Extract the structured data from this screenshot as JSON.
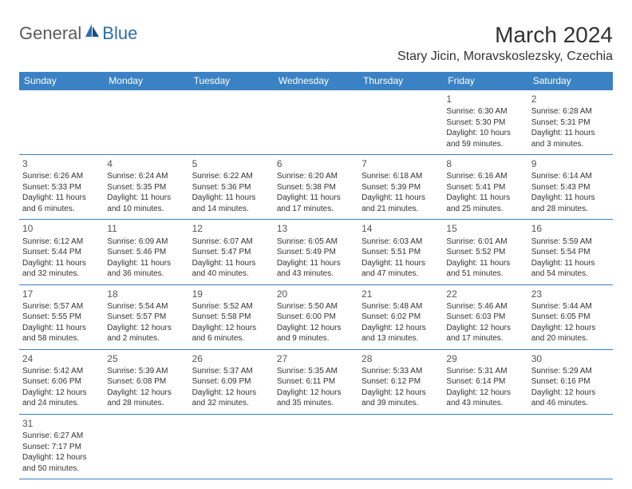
{
  "logo": {
    "general": "General",
    "blue": "Blue"
  },
  "title": "March 2024",
  "location": "Stary Jicin, Moravskoslezsky, Czechia",
  "colors": {
    "header_bg": "#3b82c4",
    "header_fg": "#ffffff",
    "border": "#3b82c4",
    "text": "#333333",
    "logo_gray": "#5a5a5a",
    "logo_blue": "#2b6cb0"
  },
  "weekdays": [
    "Sunday",
    "Monday",
    "Tuesday",
    "Wednesday",
    "Thursday",
    "Friday",
    "Saturday"
  ],
  "weeks": [
    [
      null,
      null,
      null,
      null,
      null,
      {
        "n": "1",
        "sr": "Sunrise: 6:30 AM",
        "ss": "Sunset: 5:30 PM",
        "dl": "Daylight: 10 hours and 59 minutes."
      },
      {
        "n": "2",
        "sr": "Sunrise: 6:28 AM",
        "ss": "Sunset: 5:31 PM",
        "dl": "Daylight: 11 hours and 3 minutes."
      }
    ],
    [
      {
        "n": "3",
        "sr": "Sunrise: 6:26 AM",
        "ss": "Sunset: 5:33 PM",
        "dl": "Daylight: 11 hours and 6 minutes."
      },
      {
        "n": "4",
        "sr": "Sunrise: 6:24 AM",
        "ss": "Sunset: 5:35 PM",
        "dl": "Daylight: 11 hours and 10 minutes."
      },
      {
        "n": "5",
        "sr": "Sunrise: 6:22 AM",
        "ss": "Sunset: 5:36 PM",
        "dl": "Daylight: 11 hours and 14 minutes."
      },
      {
        "n": "6",
        "sr": "Sunrise: 6:20 AM",
        "ss": "Sunset: 5:38 PM",
        "dl": "Daylight: 11 hours and 17 minutes."
      },
      {
        "n": "7",
        "sr": "Sunrise: 6:18 AM",
        "ss": "Sunset: 5:39 PM",
        "dl": "Daylight: 11 hours and 21 minutes."
      },
      {
        "n": "8",
        "sr": "Sunrise: 6:16 AM",
        "ss": "Sunset: 5:41 PM",
        "dl": "Daylight: 11 hours and 25 minutes."
      },
      {
        "n": "9",
        "sr": "Sunrise: 6:14 AM",
        "ss": "Sunset: 5:43 PM",
        "dl": "Daylight: 11 hours and 28 minutes."
      }
    ],
    [
      {
        "n": "10",
        "sr": "Sunrise: 6:12 AM",
        "ss": "Sunset: 5:44 PM",
        "dl": "Daylight: 11 hours and 32 minutes."
      },
      {
        "n": "11",
        "sr": "Sunrise: 6:09 AM",
        "ss": "Sunset: 5:46 PM",
        "dl": "Daylight: 11 hours and 36 minutes."
      },
      {
        "n": "12",
        "sr": "Sunrise: 6:07 AM",
        "ss": "Sunset: 5:47 PM",
        "dl": "Daylight: 11 hours and 40 minutes."
      },
      {
        "n": "13",
        "sr": "Sunrise: 6:05 AM",
        "ss": "Sunset: 5:49 PM",
        "dl": "Daylight: 11 hours and 43 minutes."
      },
      {
        "n": "14",
        "sr": "Sunrise: 6:03 AM",
        "ss": "Sunset: 5:51 PM",
        "dl": "Daylight: 11 hours and 47 minutes."
      },
      {
        "n": "15",
        "sr": "Sunrise: 6:01 AM",
        "ss": "Sunset: 5:52 PM",
        "dl": "Daylight: 11 hours and 51 minutes."
      },
      {
        "n": "16",
        "sr": "Sunrise: 5:59 AM",
        "ss": "Sunset: 5:54 PM",
        "dl": "Daylight: 11 hours and 54 minutes."
      }
    ],
    [
      {
        "n": "17",
        "sr": "Sunrise: 5:57 AM",
        "ss": "Sunset: 5:55 PM",
        "dl": "Daylight: 11 hours and 58 minutes."
      },
      {
        "n": "18",
        "sr": "Sunrise: 5:54 AM",
        "ss": "Sunset: 5:57 PM",
        "dl": "Daylight: 12 hours and 2 minutes."
      },
      {
        "n": "19",
        "sr": "Sunrise: 5:52 AM",
        "ss": "Sunset: 5:58 PM",
        "dl": "Daylight: 12 hours and 6 minutes."
      },
      {
        "n": "20",
        "sr": "Sunrise: 5:50 AM",
        "ss": "Sunset: 6:00 PM",
        "dl": "Daylight: 12 hours and 9 minutes."
      },
      {
        "n": "21",
        "sr": "Sunrise: 5:48 AM",
        "ss": "Sunset: 6:02 PM",
        "dl": "Daylight: 12 hours and 13 minutes."
      },
      {
        "n": "22",
        "sr": "Sunrise: 5:46 AM",
        "ss": "Sunset: 6:03 PM",
        "dl": "Daylight: 12 hours and 17 minutes."
      },
      {
        "n": "23",
        "sr": "Sunrise: 5:44 AM",
        "ss": "Sunset: 6:05 PM",
        "dl": "Daylight: 12 hours and 20 minutes."
      }
    ],
    [
      {
        "n": "24",
        "sr": "Sunrise: 5:42 AM",
        "ss": "Sunset: 6:06 PM",
        "dl": "Daylight: 12 hours and 24 minutes."
      },
      {
        "n": "25",
        "sr": "Sunrise: 5:39 AM",
        "ss": "Sunset: 6:08 PM",
        "dl": "Daylight: 12 hours and 28 minutes."
      },
      {
        "n": "26",
        "sr": "Sunrise: 5:37 AM",
        "ss": "Sunset: 6:09 PM",
        "dl": "Daylight: 12 hours and 32 minutes."
      },
      {
        "n": "27",
        "sr": "Sunrise: 5:35 AM",
        "ss": "Sunset: 6:11 PM",
        "dl": "Daylight: 12 hours and 35 minutes."
      },
      {
        "n": "28",
        "sr": "Sunrise: 5:33 AM",
        "ss": "Sunset: 6:12 PM",
        "dl": "Daylight: 12 hours and 39 minutes."
      },
      {
        "n": "29",
        "sr": "Sunrise: 5:31 AM",
        "ss": "Sunset: 6:14 PM",
        "dl": "Daylight: 12 hours and 43 minutes."
      },
      {
        "n": "30",
        "sr": "Sunrise: 5:29 AM",
        "ss": "Sunset: 6:16 PM",
        "dl": "Daylight: 12 hours and 46 minutes."
      }
    ],
    [
      {
        "n": "31",
        "sr": "Sunrise: 6:27 AM",
        "ss": "Sunset: 7:17 PM",
        "dl": "Daylight: 12 hours and 50 minutes."
      },
      null,
      null,
      null,
      null,
      null,
      null
    ]
  ]
}
